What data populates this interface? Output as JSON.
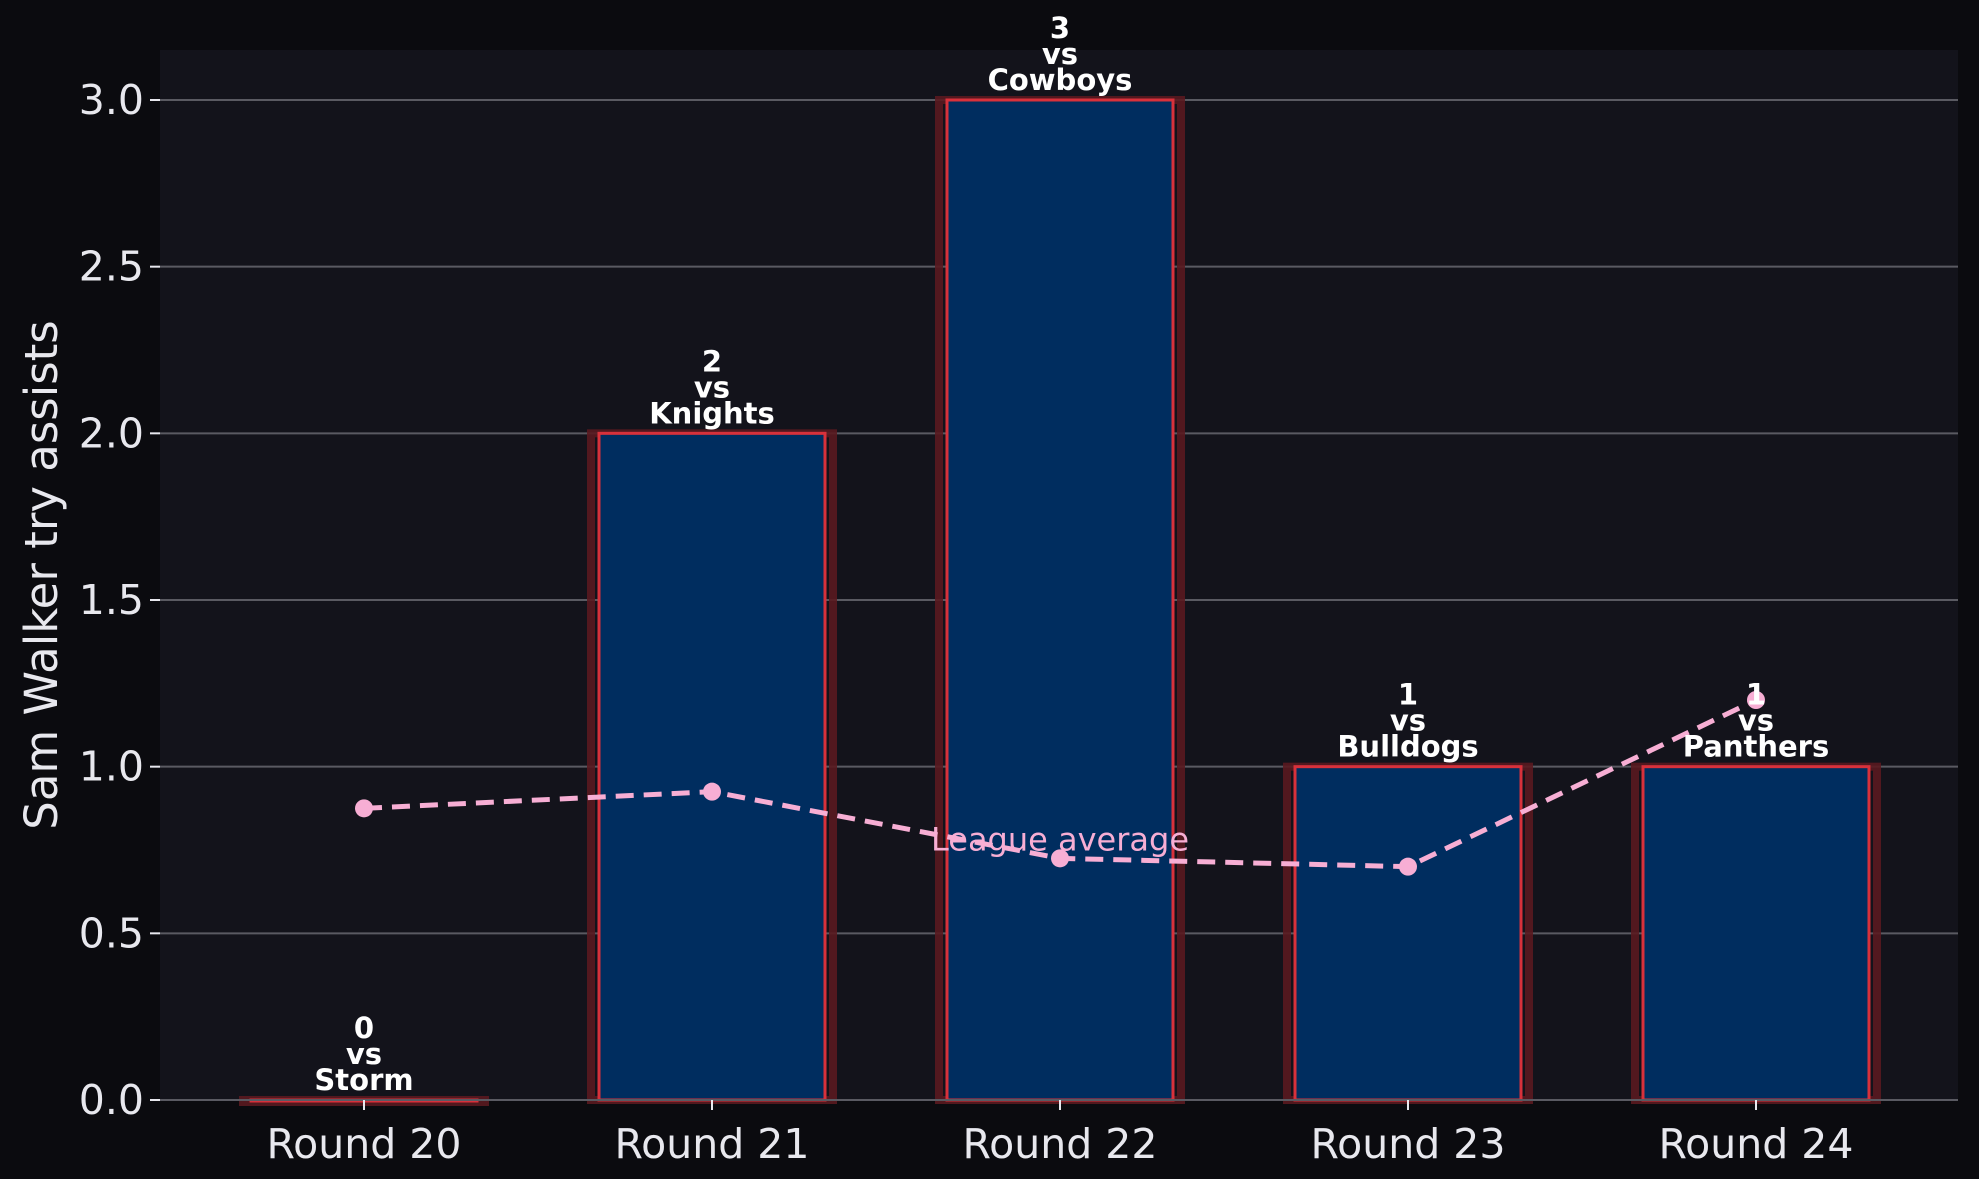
{
  "chart_data": {
    "type": "bar",
    "categories": [
      "Round 20",
      "Round 21",
      "Round 22",
      "Round 23",
      "Round 24"
    ],
    "values": [
      0,
      2,
      3,
      1,
      1
    ],
    "opponents": [
      "Storm",
      "Knights",
      "Cowboys",
      "Bulldogs",
      "Panthers"
    ],
    "bar_label_connector": "vs",
    "ylabel": "Sam Walker try assists",
    "xlabel": "",
    "ylim": [
      0,
      3.15
    ],
    "yticks": [
      "0.0",
      "0.5",
      "1.0",
      "1.5",
      "2.0",
      "2.5",
      "3.0"
    ],
    "grid": "horizontal",
    "series": [
      {
        "name": "League average",
        "type": "line",
        "style": "dashed",
        "values": [
          0.875,
          0.925,
          0.725,
          0.7,
          1.2
        ]
      }
    ],
    "colors": {
      "bar_fill": "#002d5f",
      "bar_edge": "#d8313b",
      "bar_glow": "#5a1a20",
      "line": "#f7aed4",
      "plot_bg": "#13131b",
      "page_bg": "#0b0b0f",
      "grid": "#5a5a62",
      "text": "#e8e8ee"
    }
  }
}
